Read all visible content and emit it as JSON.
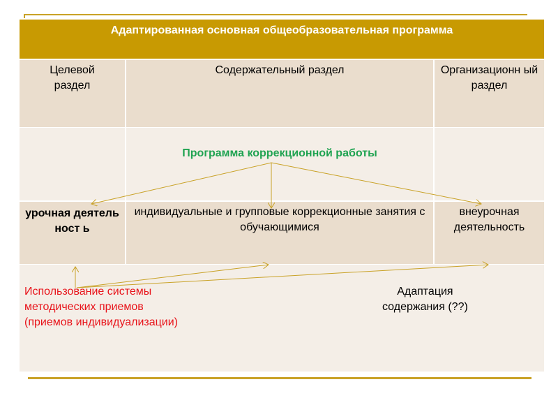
{
  "title": "Адаптированная основная общеобразовательная программа",
  "sections": {
    "target": "Целевой раздел",
    "content": "Содержательный раздел",
    "organizational": "Организационн ый раздел"
  },
  "program": "Программа коррекционной работы",
  "activities": {
    "lesson": "урочная деятельност ь",
    "individual": "индивидуальные и групповые коррекционные занятия с обучающимися",
    "extracurricular": "внеурочная деятельность"
  },
  "methods": {
    "line1": "Использование системы",
    "line2": "методических приемов",
    "line3": "(приемов индивидуализации)"
  },
  "adaptation": {
    "line1": "Адаптация",
    "line2": "содержания (??)"
  },
  "colors": {
    "accent": "#C89A02",
    "green": "#1FA351",
    "red": "#E8141B",
    "cell_dark": "#EADDCD",
    "cell_light": "#F4EEE7"
  }
}
